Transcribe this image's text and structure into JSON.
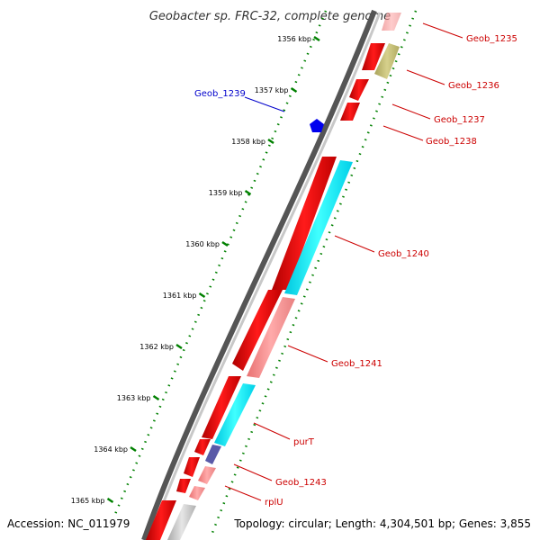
{
  "title": "Geobacter sp. FRC-32, complete genome",
  "footer": {
    "accession": "Accession: NC_011979",
    "summary": "Topology: circular; Length: 4,304,501 bp; Genes: 3,855"
  },
  "scale_ticks": [
    "1356 kbp",
    "1357 kbp",
    "1358 kbp",
    "1359 kbp",
    "1360 kbp",
    "1361 kbp",
    "1362 kbp",
    "1363 kbp",
    "1364 kbp",
    "1365 kbp"
  ],
  "genes": [
    {
      "label": "Geob_1235",
      "color": "#cc0000"
    },
    {
      "label": "Geob_1236",
      "color": "#cc0000"
    },
    {
      "label": "Geob_1237",
      "color": "#cc0000"
    },
    {
      "label": "Geob_1238",
      "color": "#cc0000"
    },
    {
      "label": "Geob_1239",
      "color": "#0000cc"
    },
    {
      "label": "Geob_1240",
      "color": "#cc0000"
    },
    {
      "label": "Geob_1241",
      "color": "#cc0000"
    },
    {
      "label": "purT",
      "color": "#cc0000"
    },
    {
      "label": "Geob_1243",
      "color": "#cc0000"
    },
    {
      "label": "rplU",
      "color": "#cc0000"
    }
  ],
  "colors": {
    "cds_red": "#ff0000",
    "cds_cyan": "#00ffff",
    "cds_pink": "#f08080",
    "cds_olive": "#bdb76b",
    "cds_blue": "#0000ff",
    "backbone": "#808080",
    "tick_green": "#008000"
  }
}
